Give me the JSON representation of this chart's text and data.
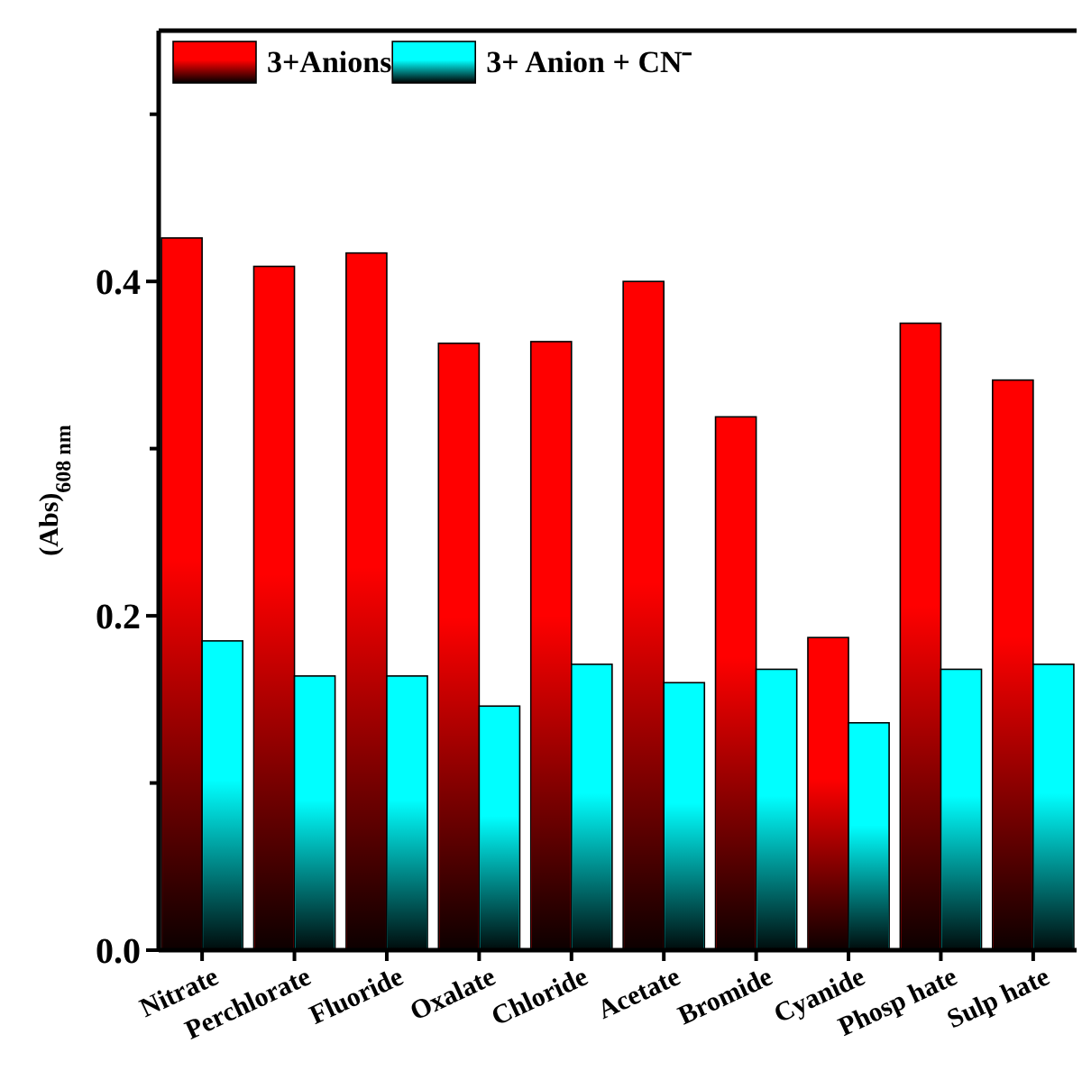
{
  "chart_data": {
    "type": "bar",
    "ylabel": "(Abs)$_{608 nm}$",
    "categories": [
      "Nitrate",
      "Perchlorate",
      "Fluoride",
      "Oxalate",
      "Chloride",
      "Acetate",
      "Bromide",
      "Cyanide",
      "Phosp hate",
      "Sulp hate"
    ],
    "series": [
      {
        "name": "3+Anions",
        "color": "#ff0000",
        "values": [
          0.426,
          0.409,
          0.417,
          0.363,
          0.364,
          0.4,
          0.319,
          0.187,
          0.375,
          0.341
        ]
      },
      {
        "name": "3+ Anion + CN⁻",
        "color": "#00ffff",
        "values": [
          0.185,
          0.164,
          0.164,
          0.146,
          0.171,
          0.16,
          0.168,
          0.136,
          0.168,
          0.171
        ]
      }
    ],
    "ylim": [
      0,
      0.55
    ],
    "yticks": [
      {
        "value": 0,
        "label": "0.0"
      },
      {
        "value": 0.1,
        "label": null
      },
      {
        "value": 0.2,
        "label": "0.2"
      },
      {
        "value": 0.3,
        "label": null
      },
      {
        "value": 0.4,
        "label": "0.4"
      },
      {
        "value": 0.5,
        "label": null
      }
    ],
    "legend": "top left",
    "grid": false
  }
}
